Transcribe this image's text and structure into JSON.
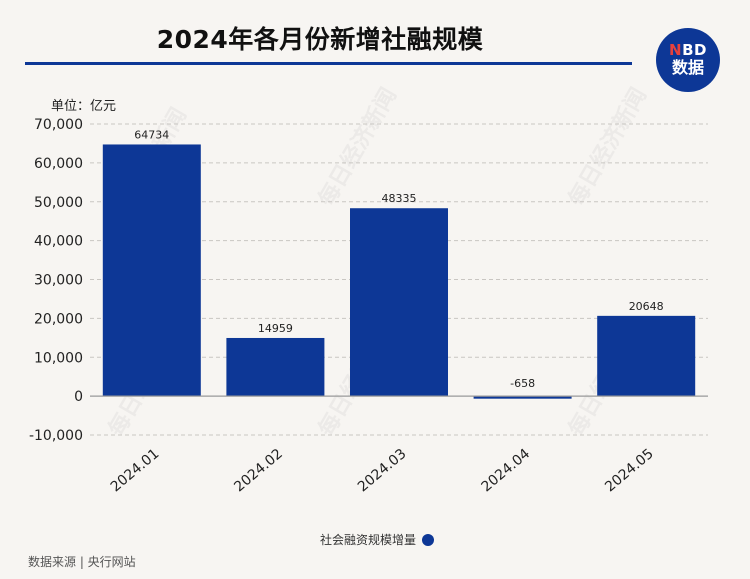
{
  "header": {
    "title": "2024年各月份新增社融规模",
    "unit": "单位：亿元"
  },
  "logo": {
    "line1_n": "N",
    "line1_rest": "BD",
    "line2": "数据",
    "color": "#0d3796"
  },
  "footer": {
    "source": "数据来源 | 央行网站"
  },
  "chart_data": {
    "type": "bar",
    "categories": [
      "2024.01",
      "2024.02",
      "2024.03",
      "2024.04",
      "2024.05"
    ],
    "series": [
      {
        "name": "社会融资规模增量",
        "values": [
          64734,
          14959,
          48335,
          -658,
          20648
        ],
        "color": "#0d3796"
      }
    ],
    "ylim": [
      -10000,
      70000
    ],
    "yticks": [
      -10000,
      0,
      10000,
      20000,
      30000,
      40000,
      50000,
      60000,
      70000
    ],
    "ytick_labels": [
      "-10,000",
      "0",
      "10,000",
      "20,000",
      "30,000",
      "40,000",
      "50,000",
      "60,000",
      "70,000"
    ],
    "grid": true,
    "legend": "bottom"
  },
  "watermark_text": "每日经济新闻"
}
